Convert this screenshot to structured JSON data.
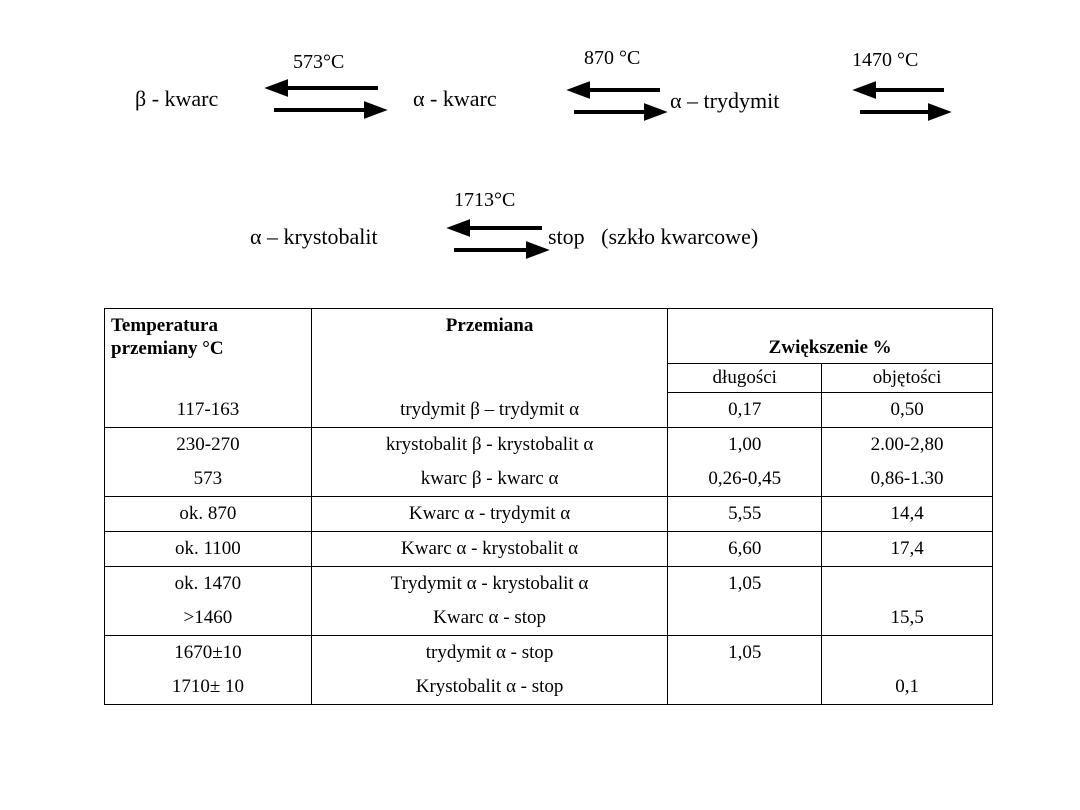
{
  "reactions": {
    "line1": {
      "nodes": [
        "β - kwarc",
        "α - kwarc",
        "α – trydymit"
      ],
      "temperatures": [
        "573°C",
        "870 °C",
        "1470 °C"
      ]
    },
    "line2": {
      "nodes": [
        "α – krystobalit",
        "stop   (szkło kwarcowe)"
      ],
      "temperatures": [
        "1713°C"
      ]
    }
  },
  "table": {
    "header": {
      "temperature": "Temperatura przemiany °C",
      "transformation": "Przemiana",
      "increase": "Zwiększenie %",
      "length": "długości",
      "volume": "objętości"
    },
    "groups": [
      [
        [
          "117-163",
          "trydymit β – trydymit α",
          "0,17",
          "0,50"
        ]
      ],
      [
        [
          "230-270",
          "krystobalit β - krystobalit α",
          "1,00",
          "2.00-2,80"
        ],
        [
          "573",
          "kwarc β - kwarc α",
          "0,26-0,45",
          "0,86-1.30"
        ]
      ],
      [
        [
          "ok. 870",
          "Kwarc α - trydymit α",
          "5,55",
          "14,4"
        ]
      ],
      [
        [
          "ok. 1100",
          "Kwarc α - krystobalit α",
          "6,60",
          "17,4"
        ]
      ],
      [
        [
          "ok. 1470",
          "Trydymit α - krystobalit α",
          "1,05",
          null
        ],
        [
          ">1460",
          "Kwarc α - stop",
          null,
          "15,5"
        ]
      ],
      [
        [
          "1670±10",
          "trydymit α - stop",
          "1,05",
          null
        ],
        [
          "1710± 10",
          "Krystobalit α - stop",
          null,
          "0,1"
        ]
      ]
    ]
  }
}
